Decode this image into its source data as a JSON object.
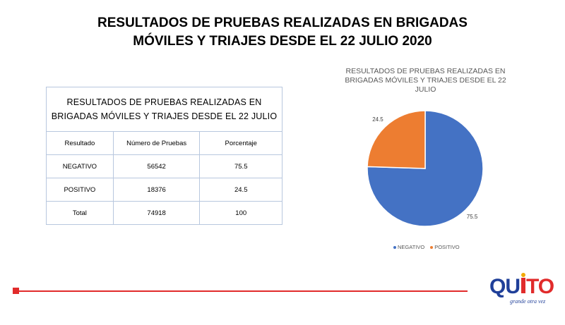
{
  "slide": {
    "title_line1": "RESULTADOS DE PRUEBAS REALIZADAS EN BRIGADAS",
    "title_line2": "MÓVILES Y TRIAJES DESDE EL 22 JULIO 2020"
  },
  "table": {
    "caption_line1": "RESULTADOS  DE PRUEBAS REALIZADAS  EN",
    "caption_line2": "BRIGADAS  MÓVILES Y TRIAJES DESDE EL 22 JULIO",
    "headers": [
      "Resultado",
      "Número  de Pruebas",
      "Porcentaje"
    ],
    "rows": [
      [
        "NEGATIVO",
        "56542",
        "75.5"
      ],
      [
        "POSITIVO",
        "18376",
        "24.5"
      ],
      [
        "Total",
        "74918",
        "100"
      ]
    ]
  },
  "chart_data": {
    "type": "pie",
    "title": "RESULTADOS DE PRUEBAS REALIZADAS EN BRIGADAS MÓVILES Y TRIAJES DESDE EL 22 JULIO",
    "title_lines": [
      "RESULTADOS DE PRUEBAS REALIZADAS EN",
      "BRIGADAS MÓVILES Y TRIAJES DESDE EL 22",
      "JULIO"
    ],
    "categories": [
      "NEGATIVO",
      "POSITIVO"
    ],
    "values": [
      75.5,
      24.5
    ],
    "data_labels": [
      "75.5",
      "24.5"
    ],
    "colors": [
      "#4472c4",
      "#ed7d31"
    ],
    "legend_position": "bottom"
  },
  "logo": {
    "text": "QUITO",
    "tagline": "grande otra vez",
    "colors": {
      "blue": "#1f3f99",
      "red": "#e12b2b",
      "accent": "#f2a900"
    }
  },
  "footer": {
    "rule_color": "#e12b2b"
  }
}
